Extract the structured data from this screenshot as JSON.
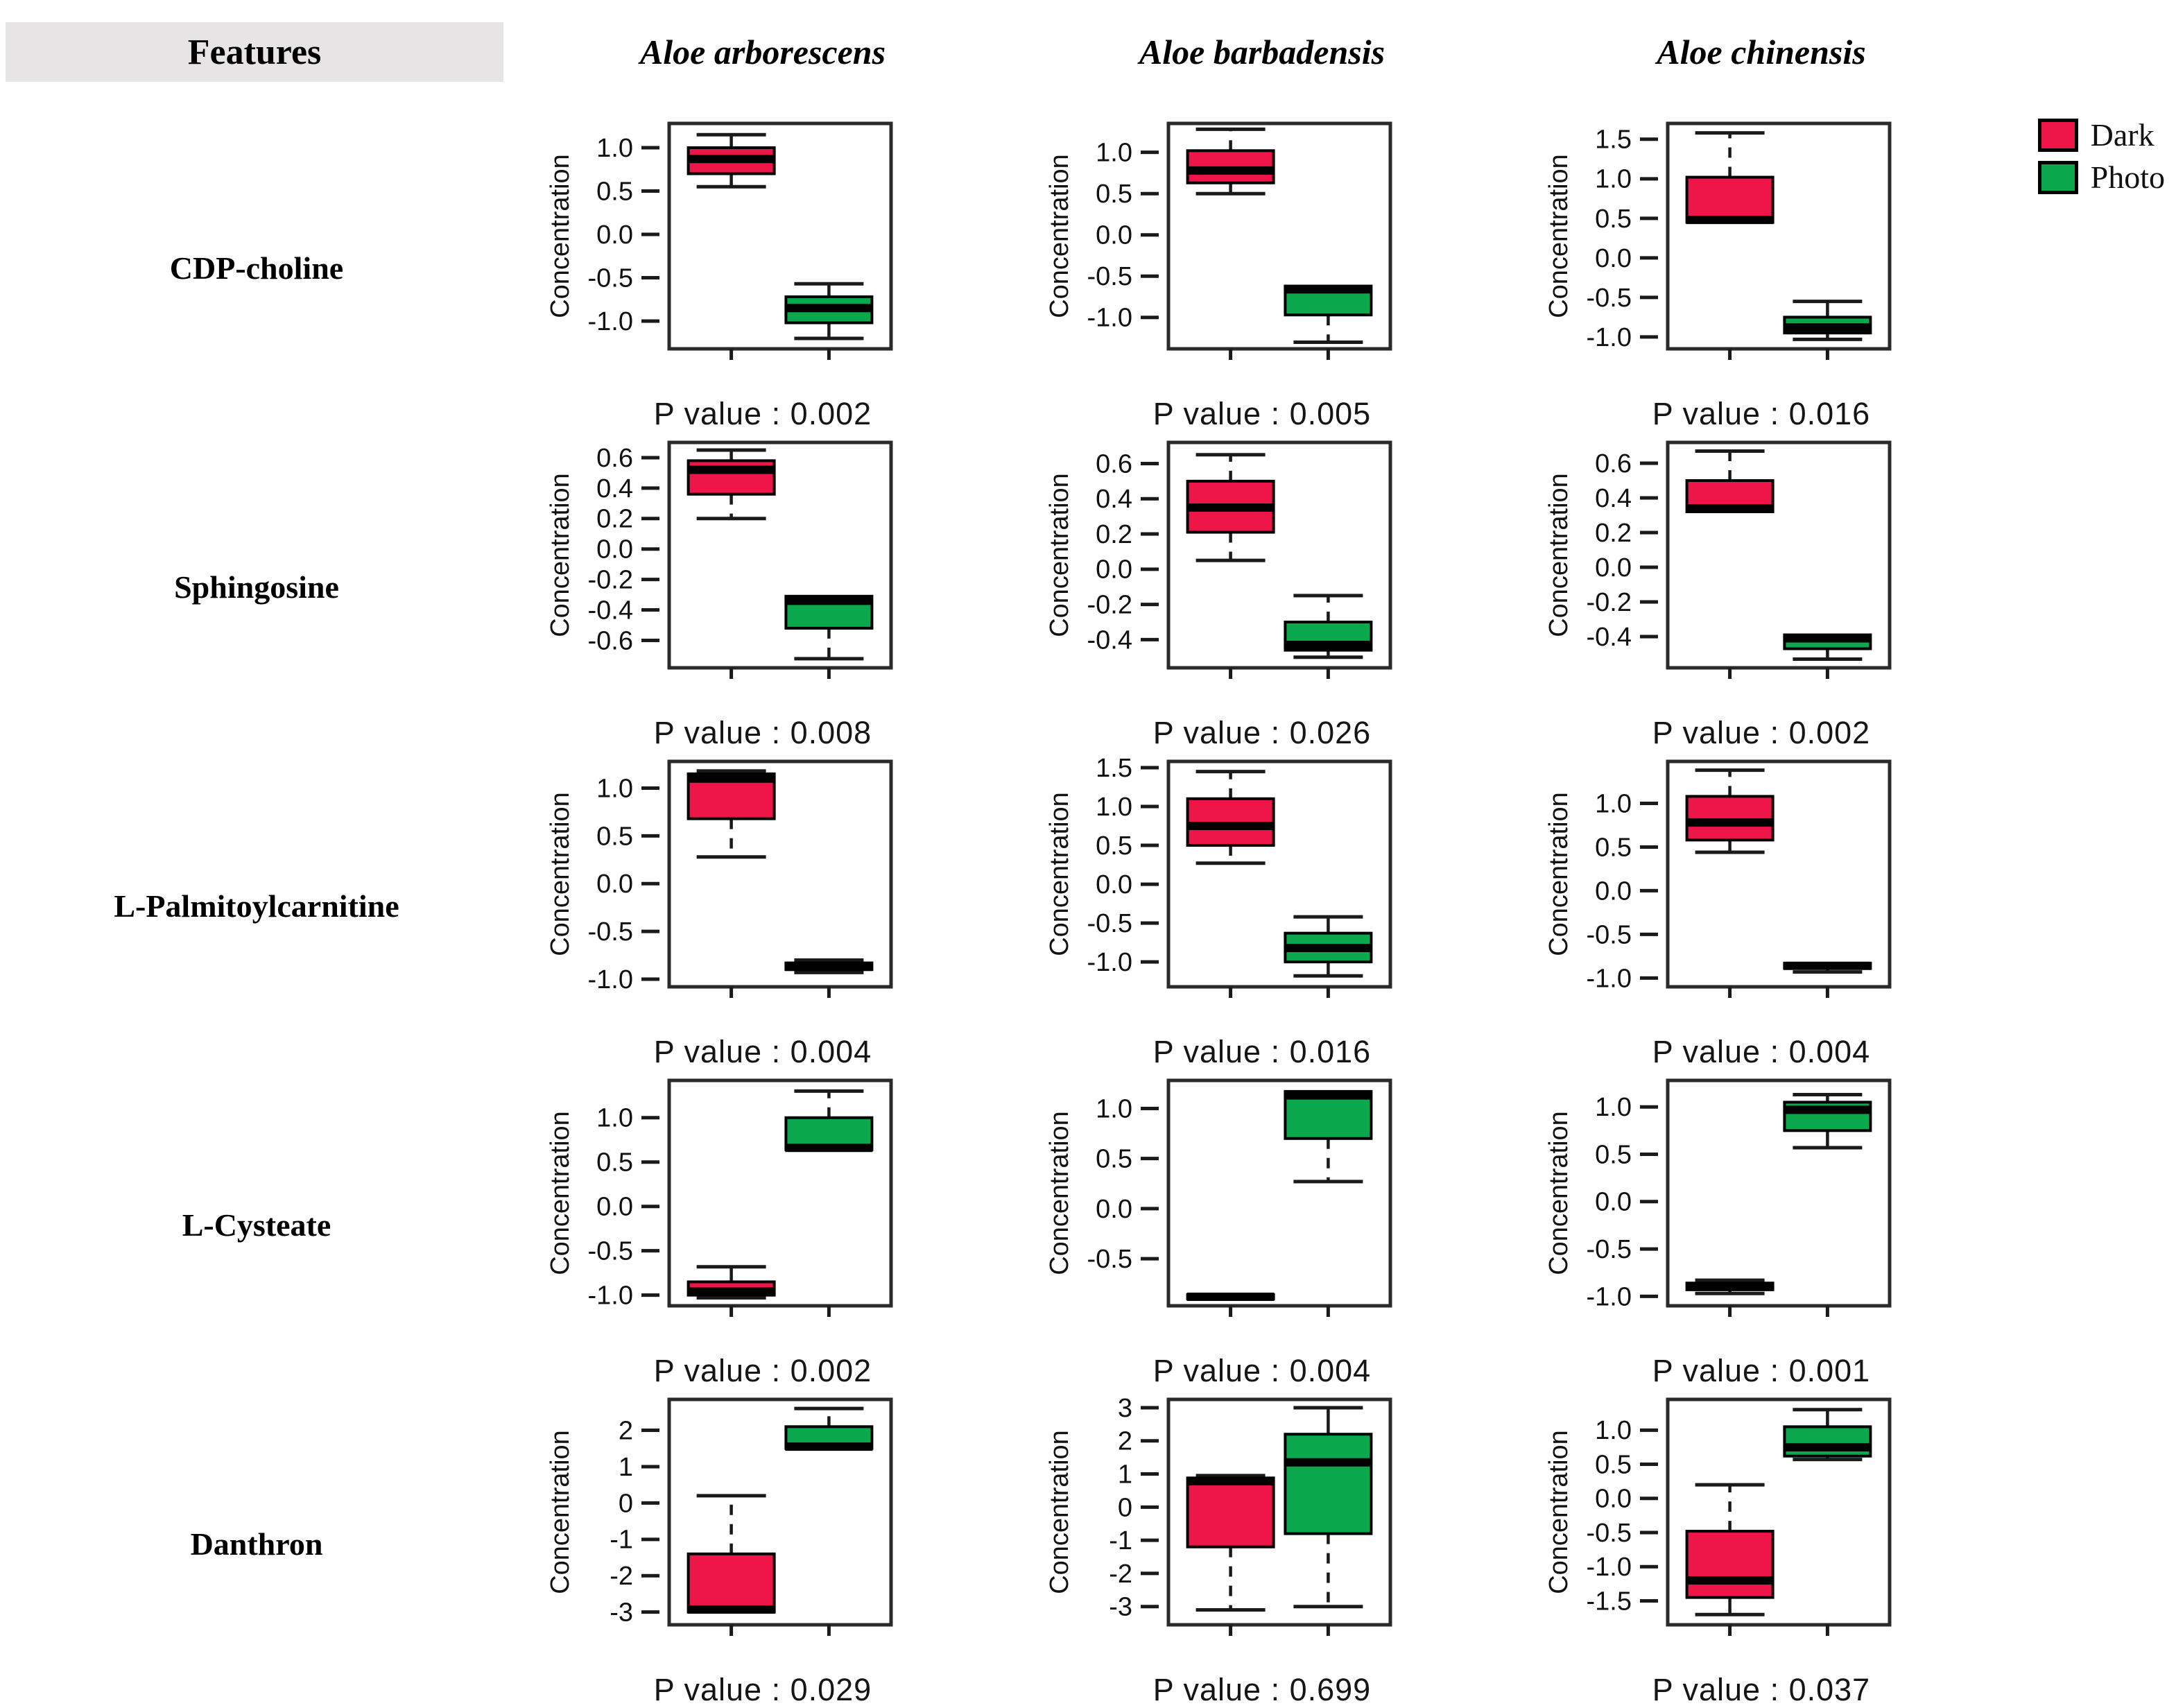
{
  "header": {
    "features_label": "Features",
    "species": [
      "Aloe arborescens",
      "Aloe barbadensis",
      "Aloe chinensis"
    ]
  },
  "legend": {
    "items": [
      {
        "label": "Dark",
        "color": "#ee1649"
      },
      {
        "label": "Photo",
        "color": "#0ba74c"
      }
    ]
  },
  "colors": {
    "dark_box": "#ee1649",
    "photo_box": "#0ba74c",
    "features_header_bg": "#e6e4e4",
    "axis": "#1a1a1a"
  },
  "chart_data": {
    "type": "boxplot-grid",
    "ylabel": "Concentration",
    "group_labels": [
      "Dark",
      "Photo"
    ],
    "columns": [
      "Aloe arborescens",
      "Aloe barbadensis",
      "Aloe chinensis"
    ],
    "rows": [
      {
        "feature": "CDP-choline",
        "cells": [
          {
            "yticks": [
              "1.0",
              "0.5",
              "0.0",
              "-0.5",
              "-1.0"
            ],
            "ymin": -1.32,
            "ymax": 1.28,
            "p": "0.002",
            "p_label": "P value : 0.002",
            "dark": {
              "lo": 0.55,
              "q1": 0.7,
              "med": 0.87,
              "q3": 1.0,
              "hi": 1.15,
              "dlo": false,
              "dhi": false
            },
            "photo": {
              "lo": -1.2,
              "q1": -1.02,
              "med": -0.85,
              "q3": -0.72,
              "hi": -0.57,
              "dlo": false,
              "dhi": false
            }
          },
          {
            "yticks": [
              "1.0",
              "0.5",
              "0.0",
              "-0.5",
              "-1.0"
            ],
            "ymin": -1.38,
            "ymax": 1.35,
            "p": "0.005",
            "p_label": "P value : 0.005",
            "dark": {
              "lo": 0.5,
              "q1": 0.63,
              "med": 0.78,
              "q3": 1.02,
              "hi": 1.28,
              "dlo": false,
              "dhi": true
            },
            "photo": {
              "lo": -1.3,
              "q1": -0.97,
              "med": -0.66,
              "q3": -0.62,
              "hi": null,
              "dlo": true,
              "dhi": false
            }
          },
          {
            "yticks": [
              "1.5",
              "1.0",
              "0.5",
              "0.0",
              "-0.5",
              "-1.0"
            ],
            "ymin": -1.15,
            "ymax": 1.7,
            "p": "0.016",
            "p_label": "P value : 0.016",
            "dark": {
              "lo": null,
              "q1": 0.45,
              "med": 0.48,
              "q3": 1.02,
              "hi": 1.58,
              "dlo": false,
              "dhi": true
            },
            "photo": {
              "lo": -1.03,
              "q1": -0.95,
              "med": -0.88,
              "q3": -0.75,
              "hi": -0.55,
              "dlo": false,
              "dhi": false
            }
          }
        ]
      },
      {
        "feature": "Sphingosine",
        "cells": [
          {
            "yticks": [
              "0.6",
              "0.4",
              "0.2",
              "0.0",
              "-0.2",
              "-0.4",
              "-0.6"
            ],
            "ymin": -0.78,
            "ymax": 0.7,
            "p": "0.008",
            "p_label": "P value : 0.008",
            "dark": {
              "lo": 0.2,
              "q1": 0.36,
              "med": 0.52,
              "q3": 0.58,
              "hi": 0.65,
              "dlo": true,
              "dhi": false
            },
            "photo": {
              "lo": -0.72,
              "q1": -0.52,
              "med": -0.34,
              "q3": -0.31,
              "hi": null,
              "dlo": true,
              "dhi": false
            }
          },
          {
            "yticks": [
              "0.6",
              "0.4",
              "0.2",
              "0.0",
              "-0.2",
              "-0.4"
            ],
            "ymin": -0.56,
            "ymax": 0.72,
            "p": "0.026",
            "p_label": "P value : 0.026",
            "dark": {
              "lo": 0.05,
              "q1": 0.21,
              "med": 0.35,
              "q3": 0.5,
              "hi": 0.65,
              "dlo": true,
              "dhi": true
            },
            "photo": {
              "lo": -0.5,
              "q1": -0.46,
              "med": -0.43,
              "q3": -0.3,
              "hi": -0.15,
              "dlo": false,
              "dhi": true
            }
          },
          {
            "yticks": [
              "0.6",
              "0.4",
              "0.2",
              "0.0",
              "-0.2",
              "-0.4"
            ],
            "ymin": -0.58,
            "ymax": 0.72,
            "p": "0.002",
            "p_label": "P value : 0.002",
            "dark": {
              "lo": null,
              "q1": 0.32,
              "med": 0.34,
              "q3": 0.5,
              "hi": 0.67,
              "dlo": false,
              "dhi": true
            },
            "photo": {
              "lo": -0.53,
              "q1": -0.47,
              "med": -0.41,
              "q3": -0.39,
              "hi": null,
              "dlo": false,
              "dhi": false
            }
          }
        ]
      },
      {
        "feature": "L-Palmitoylcarnitine",
        "cells": [
          {
            "yticks": [
              "1.0",
              "0.5",
              "0.0",
              "-0.5",
              "-1.0"
            ],
            "ymin": -1.08,
            "ymax": 1.28,
            "p": "0.004",
            "p_label": "P value : 0.004",
            "dark": {
              "lo": 0.28,
              "q1": 0.68,
              "med": 1.1,
              "q3": 1.15,
              "hi": 1.18,
              "dlo": true,
              "dhi": false
            },
            "photo": {
              "lo": -0.93,
              "q1": -0.9,
              "med": -0.87,
              "q3": -0.83,
              "hi": -0.8,
              "dlo": false,
              "dhi": false
            }
          },
          {
            "yticks": [
              "1.5",
              "1.0",
              "0.5",
              "0.0",
              "-0.5",
              "-1.0"
            ],
            "ymin": -1.32,
            "ymax": 1.58,
            "p": "0.016",
            "p_label": "P value : 0.016",
            "dark": {
              "lo": 0.27,
              "q1": 0.5,
              "med": 0.75,
              "q3": 1.1,
              "hi": 1.45,
              "dlo": true,
              "dhi": true
            },
            "photo": {
              "lo": -1.18,
              "q1": -1.0,
              "med": -0.82,
              "q3": -0.63,
              "hi": -0.42,
              "dlo": false,
              "dhi": false
            }
          },
          {
            "yticks": [
              "1.0",
              "0.5",
              "0.0",
              "-0.5",
              "-1.0"
            ],
            "ymin": -1.1,
            "ymax": 1.48,
            "p": "0.004",
            "p_label": "P value : 0.004",
            "dark": {
              "lo": 0.44,
              "q1": 0.58,
              "med": 0.78,
              "q3": 1.08,
              "hi": 1.38,
              "dlo": false,
              "dhi": true
            },
            "photo": {
              "lo": -0.93,
              "q1": -0.89,
              "med": -0.86,
              "q3": -0.83,
              "hi": null,
              "dlo": false,
              "dhi": false
            }
          }
        ]
      },
      {
        "feature": "L-Cysteate",
        "cells": [
          {
            "yticks": [
              "1.0",
              "0.5",
              "0.0",
              "-0.5",
              "-1.0"
            ],
            "ymin": -1.12,
            "ymax": 1.42,
            "p": "0.002",
            "p_label": "P value : 0.002",
            "dark": {
              "lo": -1.03,
              "q1": -1.0,
              "med": -0.96,
              "q3": -0.85,
              "hi": -0.68,
              "dlo": false,
              "dhi": false
            },
            "photo": {
              "lo": null,
              "q1": 0.64,
              "med": 0.66,
              "q3": 1.0,
              "hi": 1.3,
              "dlo": false,
              "dhi": true
            }
          },
          {
            "yticks": [
              "1.0",
              "0.5",
              "0.0",
              "-0.5"
            ],
            "ymin": -0.97,
            "ymax": 1.28,
            "p": "0.004",
            "p_label": "P value : 0.004",
            "dark": {
              "lo": null,
              "q1": -0.9,
              "med": -0.88,
              "q3": -0.86,
              "hi": null,
              "dlo": false,
              "dhi": false
            },
            "photo": {
              "lo": 0.27,
              "q1": 0.7,
              "med": 1.13,
              "q3": 1.17,
              "hi": null,
              "dlo": true,
              "dhi": false
            }
          },
          {
            "yticks": [
              "1.0",
              "0.5",
              "0.0",
              "-0.5",
              "-1.0"
            ],
            "ymin": -1.1,
            "ymax": 1.28,
            "p": "0.001",
            "p_label": "P value : 0.001",
            "dark": {
              "lo": -0.97,
              "q1": -0.93,
              "med": -0.9,
              "q3": -0.86,
              "hi": -0.83,
              "dlo": false,
              "dhi": false
            },
            "photo": {
              "lo": 0.57,
              "q1": 0.75,
              "med": 0.97,
              "q3": 1.05,
              "hi": 1.13,
              "dlo": false,
              "dhi": false
            }
          }
        ]
      },
      {
        "feature": "Danthron",
        "cells": [
          {
            "yticks": [
              "2",
              "1",
              "0",
              "-1",
              "-2",
              "-3"
            ],
            "ymin": -3.35,
            "ymax": 2.85,
            "p": "0.029",
            "p_label": "P value : 0.029",
            "dark": {
              "lo": null,
              "q1": -3.0,
              "med": -2.93,
              "q3": -1.4,
              "hi": 0.2,
              "dlo": false,
              "dhi": true
            },
            "photo": {
              "lo": null,
              "q1": 1.5,
              "med": 1.55,
              "q3": 2.1,
              "hi": 2.6,
              "dlo": false,
              "dhi": true
            }
          },
          {
            "yticks": [
              "3",
              "2",
              "1",
              "0",
              "-1",
              "-2",
              "-3"
            ],
            "ymin": -3.55,
            "ymax": 3.25,
            "p": "0.699",
            "p_label": "P value : 0.699",
            "dark": {
              "lo": -3.1,
              "q1": -1.2,
              "med": 0.78,
              "q3": 0.88,
              "hi": 0.95,
              "dlo": true,
              "dhi": false
            },
            "photo": {
              "lo": -3.0,
              "q1": -0.8,
              "med": 1.35,
              "q3": 2.2,
              "hi": 3.0,
              "dlo": true,
              "dhi": false
            }
          },
          {
            "yticks": [
              "1.0",
              "0.5",
              "0.0",
              "-0.5",
              "-1.0",
              "-1.5"
            ],
            "ymin": -1.85,
            "ymax": 1.45,
            "p": "0.037",
            "p_label": "P value : 0.037",
            "dark": {
              "lo": -1.7,
              "q1": -1.45,
              "med": -1.2,
              "q3": -0.48,
              "hi": 0.2,
              "dlo": false,
              "dhi": true
            },
            "photo": {
              "lo": 0.57,
              "q1": 0.62,
              "med": 0.75,
              "q3": 1.05,
              "hi": 1.3,
              "dlo": false,
              "dhi": false
            }
          }
        ]
      }
    ]
  }
}
